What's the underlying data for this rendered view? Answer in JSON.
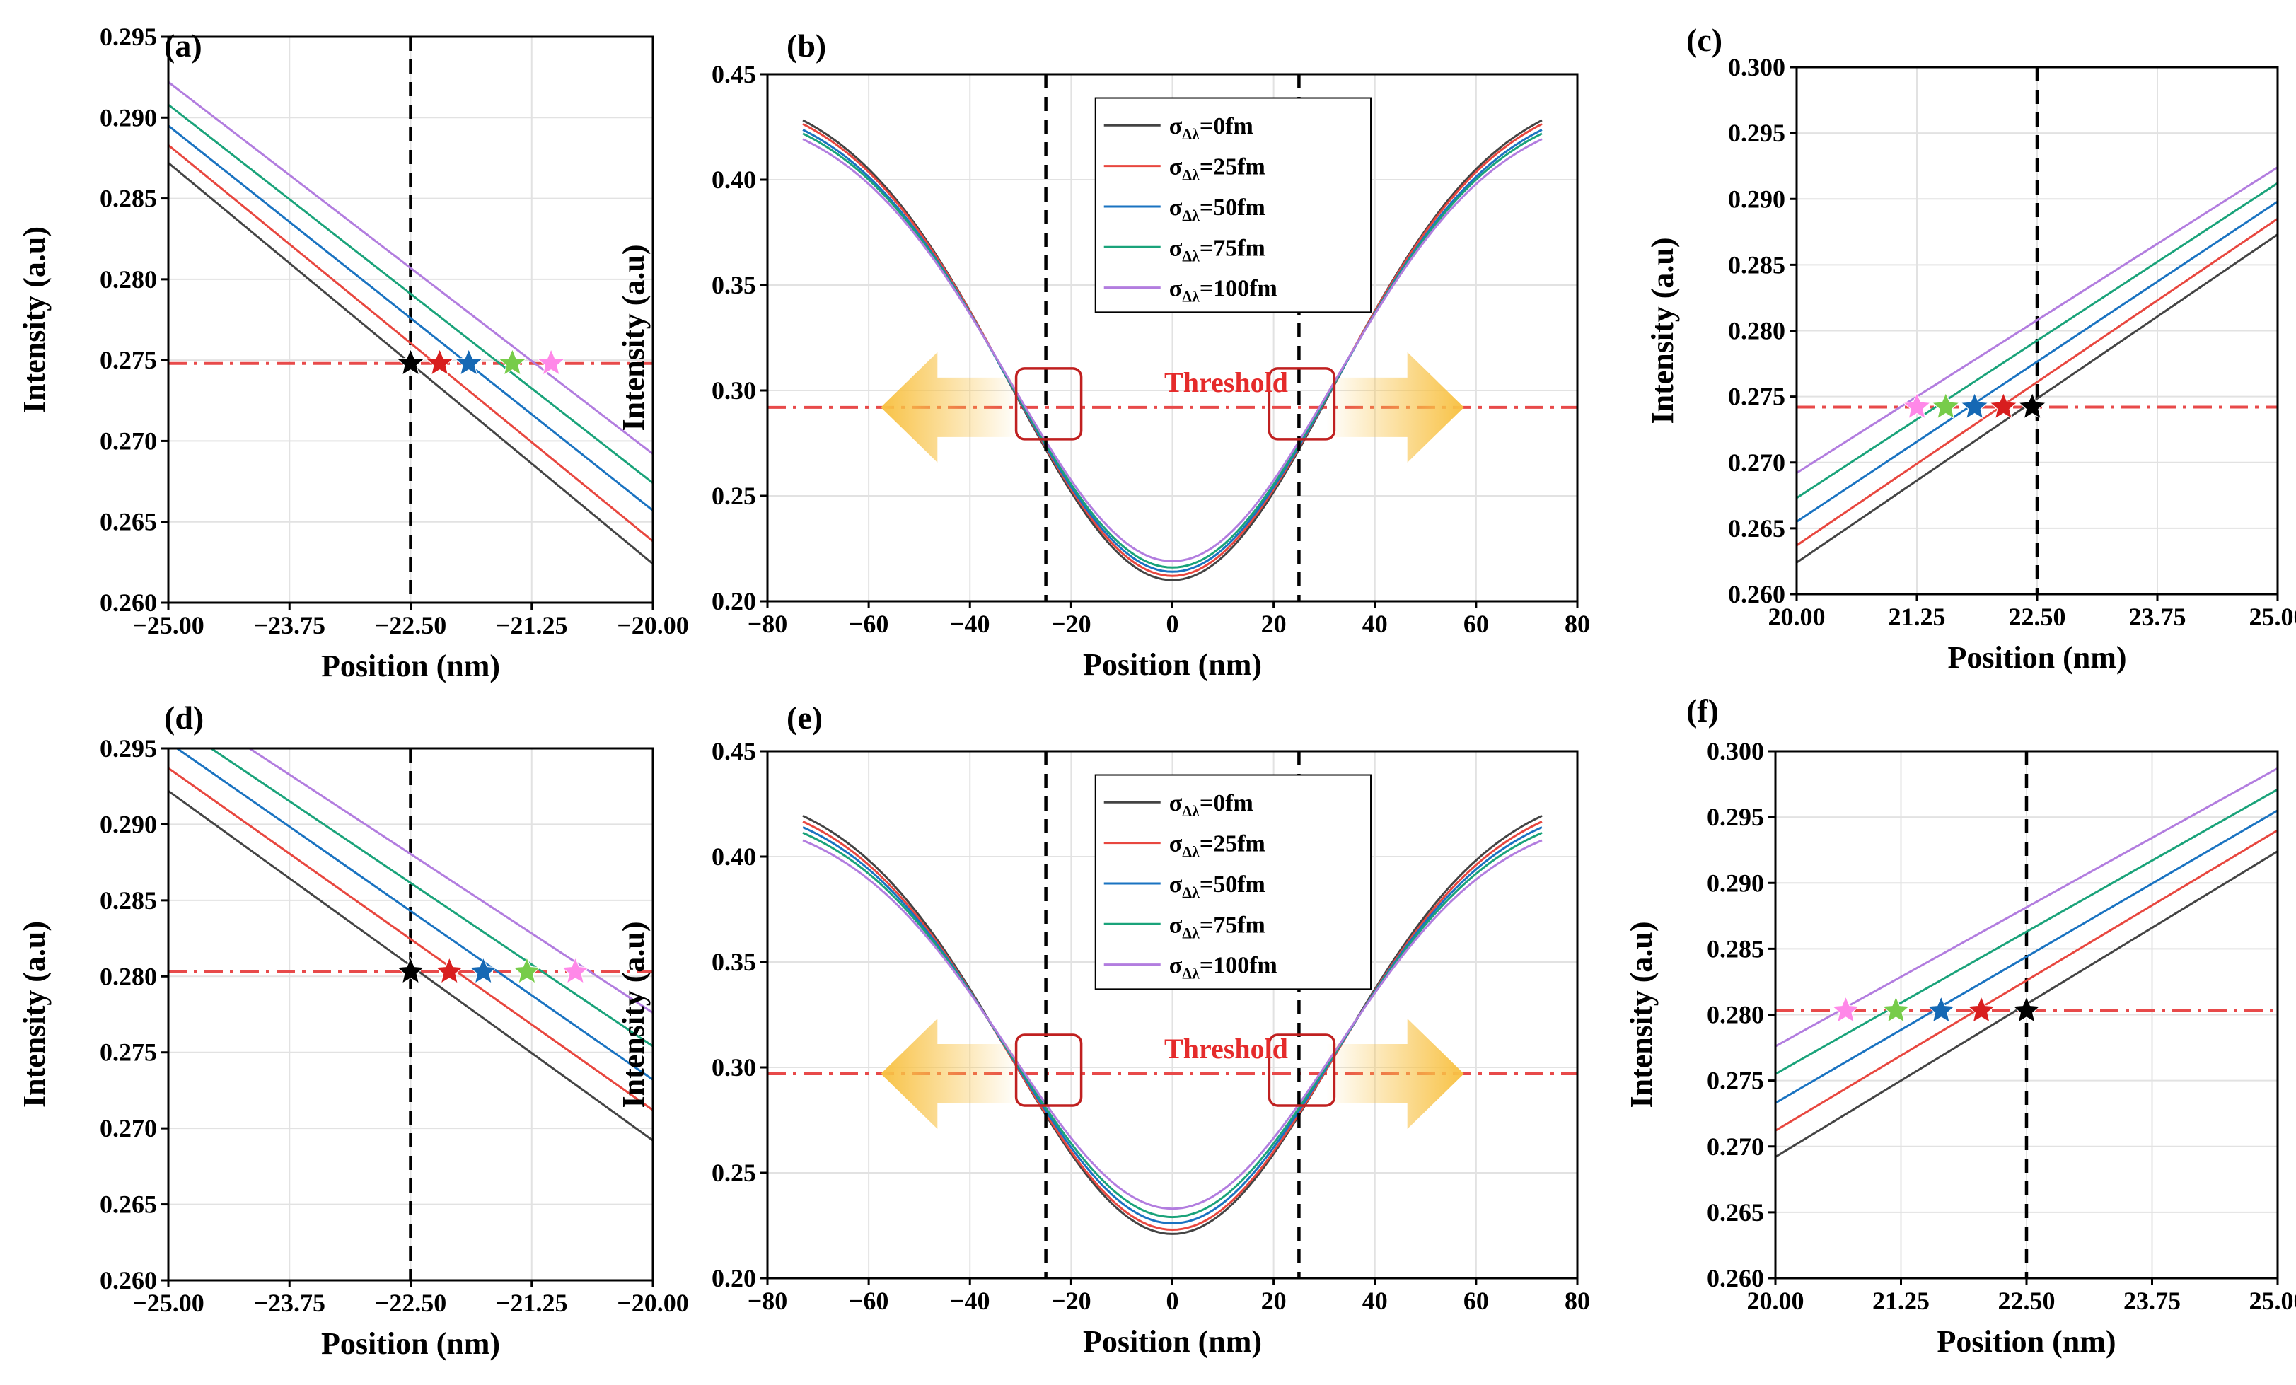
{
  "colors": {
    "series": [
      "#444444",
      "#e8473f",
      "#1a73c1",
      "#1aa37a",
      "#b27ddf"
    ],
    "stars": [
      "#000000",
      "#d81e1e",
      "#1568b4",
      "#77cc4a",
      "#ff88e8"
    ],
    "threshold": "#e84a4a",
    "arrow": "#f8c245",
    "highlight_box": "#c02020"
  },
  "chart_data": [
    {
      "panel": "(a)",
      "type": "line",
      "xlabel": "Position (nm)",
      "ylabel": "Intensity (a.u)",
      "xlim": [
        -25.0,
        -20.0
      ],
      "ylim": [
        0.26,
        0.295
      ],
      "xticks": [
        -25.0,
        -23.75,
        -22.5,
        -21.25,
        -20.0
      ],
      "xtick_labels": [
        "−25.00",
        "−23.75",
        "−22.50",
        "−21.25",
        "−20.00"
      ],
      "yticks": [
        0.26,
        0.265,
        0.27,
        0.275,
        0.28,
        0.285,
        0.29,
        0.295
      ],
      "ytick_labels": [
        "0.260",
        "0.265",
        "0.270",
        "0.275",
        "0.280",
        "0.285",
        "0.290",
        "0.295"
      ],
      "series": [
        {
          "name": "0fm",
          "x": [
            -25.0,
            -20.0
          ],
          "y": [
            0.2872,
            0.2624
          ]
        },
        {
          "name": "25fm",
          "x": [
            -25.0,
            -20.0
          ],
          "y": [
            0.2883,
            0.2638
          ]
        },
        {
          "name": "50fm",
          "x": [
            -25.0,
            -20.0
          ],
          "y": [
            0.2895,
            0.2657
          ]
        },
        {
          "name": "75fm",
          "x": [
            -25.0,
            -20.0
          ],
          "y": [
            0.2908,
            0.2674
          ]
        },
        {
          "name": "100fm",
          "x": [
            -25.0,
            -20.0
          ],
          "y": [
            0.2922,
            0.2692
          ]
        }
      ],
      "threshold": 0.2748,
      "vline": -22.5,
      "stars": [
        -22.5,
        -22.2,
        -21.9,
        -21.45,
        -21.05
      ]
    },
    {
      "panel": "(b)",
      "type": "line",
      "xlabel": "Position (nm)",
      "ylabel": "Intensity (a.u)",
      "xlim": [
        -80,
        80
      ],
      "ylim": [
        0.2,
        0.45
      ],
      "xticks": [
        -80,
        -60,
        -40,
        -20,
        0,
        20,
        40,
        60,
        80
      ],
      "xtick_labels": [
        "−80",
        "−60",
        "−40",
        "−20",
        "0",
        "20",
        "40",
        "60",
        "80"
      ],
      "yticks": [
        0.2,
        0.25,
        0.3,
        0.35,
        0.4,
        0.45
      ],
      "ytick_labels": [
        "0.20",
        "0.25",
        "0.30",
        "0.35",
        "0.40",
        "0.45"
      ],
      "series": [
        {
          "name": "σΔλ=0fm",
          "min": 0.21,
          "max": 0.441
        },
        {
          "name": "σΔλ=25fm",
          "min": 0.212,
          "max": 0.439
        },
        {
          "name": "σΔλ=50fm",
          "min": 0.214,
          "max": 0.436
        },
        {
          "name": "σΔλ=75fm",
          "min": 0.216,
          "max": 0.434
        },
        {
          "name": "σΔλ=100fm",
          "min": 0.219,
          "max": 0.431
        }
      ],
      "legend": {
        "entries": [
          {
            "sym": "σ",
            "sub": "Δλ",
            "rest": "=0fm"
          },
          {
            "sym": "σ",
            "sub": "Δλ",
            "rest": "=25fm"
          },
          {
            "sym": "σ",
            "sub": "Δλ",
            "rest": "=50fm"
          },
          {
            "sym": "σ",
            "sub": "Δλ",
            "rest": "=75fm"
          },
          {
            "sym": "σ",
            "sub": "Δλ",
            "rest": "=100fm"
          }
        ]
      },
      "threshold": 0.292,
      "threshold_label": "Threshold",
      "vlines": [
        -25,
        25
      ]
    },
    {
      "panel": "(c)",
      "type": "line",
      "xlabel": "Position (nm)",
      "ylabel": "Intensity (a.u)",
      "xlim": [
        20.0,
        25.0
      ],
      "ylim": [
        0.26,
        0.3
      ],
      "xticks": [
        20.0,
        21.25,
        22.5,
        23.75,
        25.0
      ],
      "xtick_labels": [
        "20.00",
        "21.25",
        "22.50",
        "23.75",
        "25.00"
      ],
      "yticks": [
        0.26,
        0.265,
        0.27,
        0.275,
        0.28,
        0.285,
        0.29,
        0.295,
        0.3
      ],
      "ytick_labels": [
        "0.260",
        "0.265",
        "0.270",
        "0.275",
        "0.280",
        "0.285",
        "0.290",
        "0.295",
        "0.300"
      ],
      "series": [
        {
          "name": "0fm",
          "x": [
            20.0,
            25.0
          ],
          "y": [
            0.2624,
            0.2873
          ]
        },
        {
          "name": "25fm",
          "x": [
            20.0,
            25.0
          ],
          "y": [
            0.2637,
            0.2885
          ]
        },
        {
          "name": "50fm",
          "x": [
            20.0,
            25.0
          ],
          "y": [
            0.2655,
            0.2898
          ]
        },
        {
          "name": "75fm",
          "x": [
            20.0,
            25.0
          ],
          "y": [
            0.2673,
            0.2912
          ]
        },
        {
          "name": "100fm",
          "x": [
            20.0,
            25.0
          ],
          "y": [
            0.2692,
            0.2924
          ]
        }
      ],
      "threshold": 0.2742,
      "vline": 22.5,
      "stars": [
        22.45,
        22.15,
        21.85,
        21.55,
        21.25
      ]
    },
    {
      "panel": "(d)",
      "type": "line",
      "xlabel": "Position (nm)",
      "ylabel": "Intensity (a.u)",
      "xlim": [
        -25.0,
        -20.0
      ],
      "ylim": [
        0.26,
        0.295
      ],
      "xticks": [
        -25.0,
        -23.75,
        -22.5,
        -21.25,
        -20.0
      ],
      "xtick_labels": [
        "−25.00",
        "−23.75",
        "−22.50",
        "−21.25",
        "−20.00"
      ],
      "yticks": [
        0.26,
        0.265,
        0.27,
        0.275,
        0.28,
        0.285,
        0.29,
        0.295
      ],
      "ytick_labels": [
        "0.260",
        "0.265",
        "0.270",
        "0.275",
        "0.280",
        "0.285",
        "0.290",
        "0.295"
      ],
      "series": [
        {
          "name": "0fm",
          "x": [
            -25.0,
            -20.0
          ],
          "y": [
            0.2922,
            0.2692
          ]
        },
        {
          "name": "25fm",
          "x": [
            -25.0,
            -20.0
          ],
          "y": [
            0.2937,
            0.2712
          ]
        },
        {
          "name": "50fm",
          "x": [
            -25.0,
            -20.0
          ],
          "y": [
            0.2954,
            0.2732
          ]
        },
        {
          "name": "75fm",
          "x": [
            -25.0,
            -20.0
          ],
          "y": [
            0.2969,
            0.2754
          ]
        },
        {
          "name": "100fm",
          "x": [
            -25.0,
            -20.0
          ],
          "y": [
            0.2985,
            0.2776
          ]
        }
      ],
      "threshold": 0.2803,
      "vline": -22.5,
      "stars": [
        -22.5,
        -22.1,
        -21.75,
        -21.3,
        -20.8
      ]
    },
    {
      "panel": "(e)",
      "type": "line",
      "xlabel": "Position (nm)",
      "ylabel": "Intensity (a.u)",
      "xlim": [
        -80,
        80
      ],
      "ylim": [
        0.2,
        0.45
      ],
      "xticks": [
        -80,
        -60,
        -40,
        -20,
        0,
        20,
        40,
        60,
        80
      ],
      "xtick_labels": [
        "−80",
        "−60",
        "−40",
        "−20",
        "0",
        "20",
        "40",
        "60",
        "80"
      ],
      "yticks": [
        0.2,
        0.25,
        0.3,
        0.35,
        0.4,
        0.45
      ],
      "ytick_labels": [
        "0.20",
        "0.25",
        "0.30",
        "0.35",
        "0.40",
        "0.45"
      ],
      "series": [
        {
          "name": "σΔλ=0fm",
          "min": 0.221,
          "max": 0.431
        },
        {
          "name": "σΔλ=25fm",
          "min": 0.223,
          "max": 0.428
        },
        {
          "name": "σΔλ=50fm",
          "min": 0.226,
          "max": 0.425
        },
        {
          "name": "σΔλ=75fm",
          "min": 0.229,
          "max": 0.422
        },
        {
          "name": "σΔλ=100fm",
          "min": 0.233,
          "max": 0.418
        }
      ],
      "legend": {
        "entries": [
          {
            "sym": "σ",
            "sub": "Δλ",
            "rest": "=0fm"
          },
          {
            "sym": "σ",
            "sub": "Δλ",
            "rest": "=25fm"
          },
          {
            "sym": "σ",
            "sub": "Δλ",
            "rest": "=50fm"
          },
          {
            "sym": "σ",
            "sub": "Δλ",
            "rest": "=75fm"
          },
          {
            "sym": "σ",
            "sub": "Δλ",
            "rest": "=100fm"
          }
        ]
      },
      "threshold": 0.297,
      "threshold_label": "Threshold",
      "vlines": [
        -25,
        25
      ]
    },
    {
      "panel": "(f)",
      "type": "line",
      "xlabel": "Position (nm)",
      "ylabel": "Intensity (a.u)",
      "xlim": [
        20.0,
        25.0
      ],
      "ylim": [
        0.26,
        0.3
      ],
      "xticks": [
        20.0,
        21.25,
        22.5,
        23.75,
        25.0
      ],
      "xtick_labels": [
        "20.00",
        "21.25",
        "22.50",
        "23.75",
        "25.00"
      ],
      "yticks": [
        0.26,
        0.265,
        0.27,
        0.275,
        0.28,
        0.285,
        0.29,
        0.295,
        0.3
      ],
      "ytick_labels": [
        "0.260",
        "0.265",
        "0.270",
        "0.275",
        "0.280",
        "0.285",
        "0.290",
        "0.295",
        "0.300"
      ],
      "series": [
        {
          "name": "0fm",
          "x": [
            20.0,
            25.0
          ],
          "y": [
            0.2692,
            0.2924
          ]
        },
        {
          "name": "25fm",
          "x": [
            20.0,
            25.0
          ],
          "y": [
            0.2712,
            0.294
          ]
        },
        {
          "name": "50fm",
          "x": [
            20.0,
            25.0
          ],
          "y": [
            0.2733,
            0.2955
          ]
        },
        {
          "name": "75fm",
          "x": [
            20.0,
            25.0
          ],
          "y": [
            0.2755,
            0.2971
          ]
        },
        {
          "name": "100fm",
          "x": [
            20.0,
            25.0
          ],
          "y": [
            0.2776,
            0.2987
          ]
        }
      ],
      "threshold": 0.2803,
      "vline": 22.5,
      "stars": [
        22.5,
        22.05,
        21.65,
        21.2,
        20.7
      ]
    }
  ]
}
